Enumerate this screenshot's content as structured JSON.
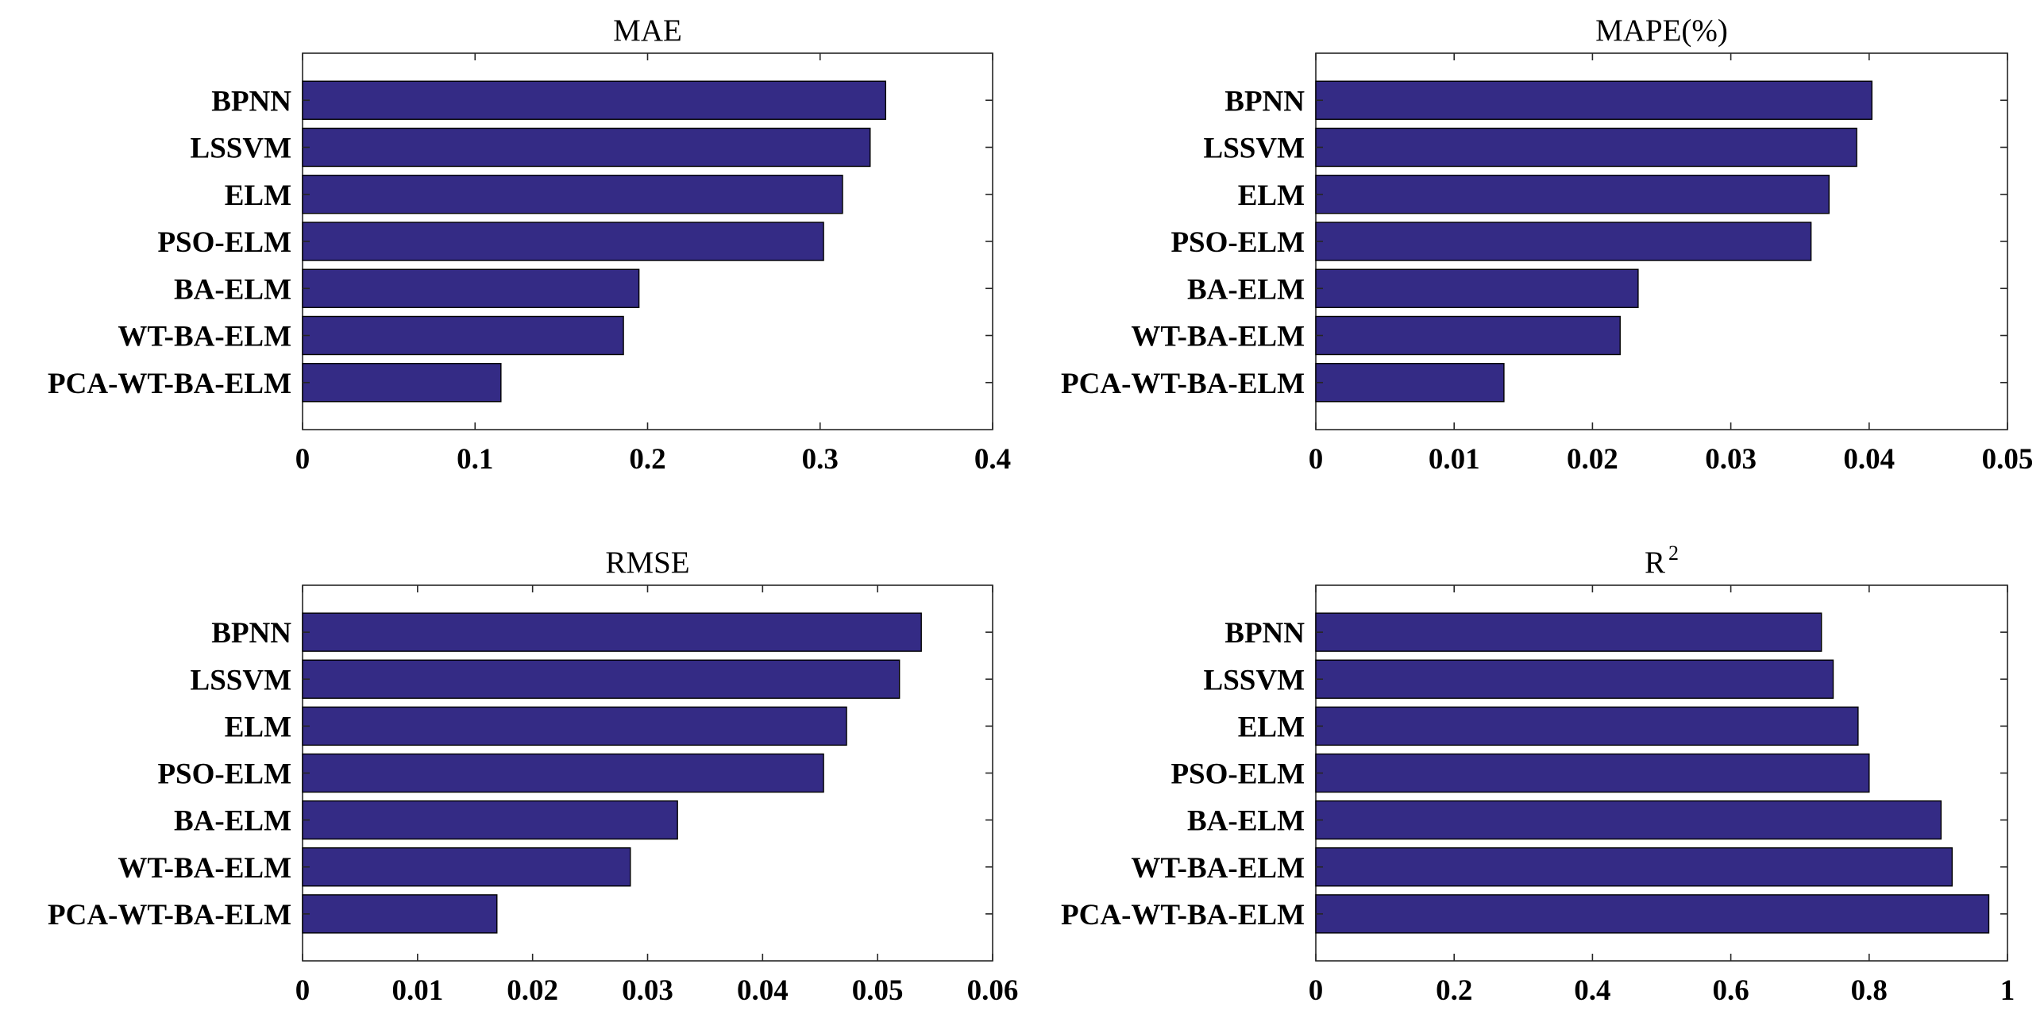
{
  "bar_color": "#342B85",
  "chart_data": [
    {
      "type": "bar",
      "orientation": "horizontal",
      "title": "MAE",
      "categories": [
        "BPNN",
        "LSSVM",
        "ELM",
        "PSO-ELM",
        "BA-ELM",
        "WT-BA-ELM",
        "PCA-WT-BA-ELM"
      ],
      "values": [
        0.338,
        0.329,
        0.313,
        0.302,
        0.195,
        0.186,
        0.115
      ],
      "xlim": [
        0,
        0.4
      ],
      "xticks": [
        0,
        0.1,
        0.2,
        0.3,
        0.4
      ],
      "xtick_labels": [
        "0",
        "0.1",
        "0.2",
        "0.3",
        "0.4"
      ]
    },
    {
      "type": "bar",
      "orientation": "horizontal",
      "title": "MAPE(%)",
      "categories": [
        "BPNN",
        "LSSVM",
        "ELM",
        "PSO-ELM",
        "BA-ELM",
        "WT-BA-ELM",
        "PCA-WT-BA-ELM"
      ],
      "values": [
        0.0402,
        0.0391,
        0.0371,
        0.0358,
        0.0233,
        0.022,
        0.0136
      ],
      "xlim": [
        0,
        0.05
      ],
      "xticks": [
        0,
        0.01,
        0.02,
        0.03,
        0.04,
        0.05
      ],
      "xtick_labels": [
        "0",
        "0.01",
        "0.02",
        "0.03",
        "0.04",
        "0.05"
      ]
    },
    {
      "type": "bar",
      "orientation": "horizontal",
      "title": "RMSE",
      "categories": [
        "BPNN",
        "LSSVM",
        "ELM",
        "PSO-ELM",
        "BA-ELM",
        "WT-BA-ELM",
        "PCA-WT-BA-ELM"
      ],
      "values": [
        0.0538,
        0.0519,
        0.0473,
        0.0453,
        0.0326,
        0.0285,
        0.0169
      ],
      "xlim": [
        0,
        0.06
      ],
      "xticks": [
        0,
        0.01,
        0.02,
        0.03,
        0.04,
        0.05,
        0.06
      ],
      "xtick_labels": [
        "0",
        "0.01",
        "0.02",
        "0.03",
        "0.04",
        "0.05",
        "0.06"
      ]
    },
    {
      "type": "bar",
      "orientation": "horizontal",
      "title": "R",
      "title_superscript": "2",
      "categories": [
        "BPNN",
        "LSSVM",
        "ELM",
        "PSO-ELM",
        "BA-ELM",
        "WT-BA-ELM",
        "PCA-WT-BA-ELM"
      ],
      "values": [
        0.731,
        0.748,
        0.784,
        0.8,
        0.904,
        0.92,
        0.973
      ],
      "xlim": [
        0,
        1
      ],
      "xticks": [
        0,
        0.2,
        0.4,
        0.6,
        0.8,
        1
      ],
      "xtick_labels": [
        "0",
        "0.2",
        "0.4",
        "0.6",
        "0.8",
        "1"
      ]
    }
  ]
}
